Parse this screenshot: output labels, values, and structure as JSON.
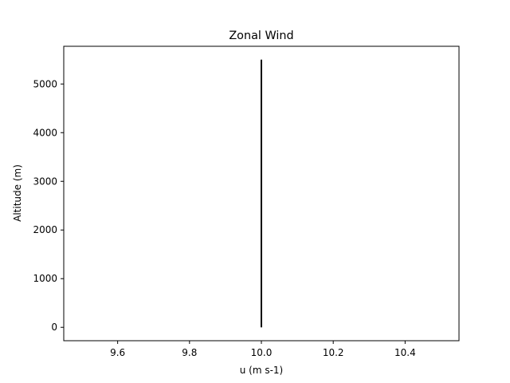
{
  "chart_data": {
    "type": "line",
    "title": "Zonal Wind",
    "xlabel": "u (m s-1)",
    "ylabel": "Altitude (m)",
    "xlim": [
      9.45,
      10.55
    ],
    "ylim": [
      -275,
      5775
    ],
    "xticks": [
      9.6,
      9.8,
      10.0,
      10.2,
      10.4
    ],
    "xtick_labels": [
      "9.6",
      "9.8",
      "10.0",
      "10.2",
      "10.4"
    ],
    "yticks": [
      0,
      1000,
      2000,
      3000,
      4000,
      5000
    ],
    "ytick_labels": [
      "0",
      "1000",
      "2000",
      "3000",
      "4000",
      "5000"
    ],
    "grid": false,
    "series": [
      {
        "color": "#000000",
        "x": [
          10.0,
          10.0
        ],
        "y": [
          0,
          5500
        ]
      }
    ]
  }
}
